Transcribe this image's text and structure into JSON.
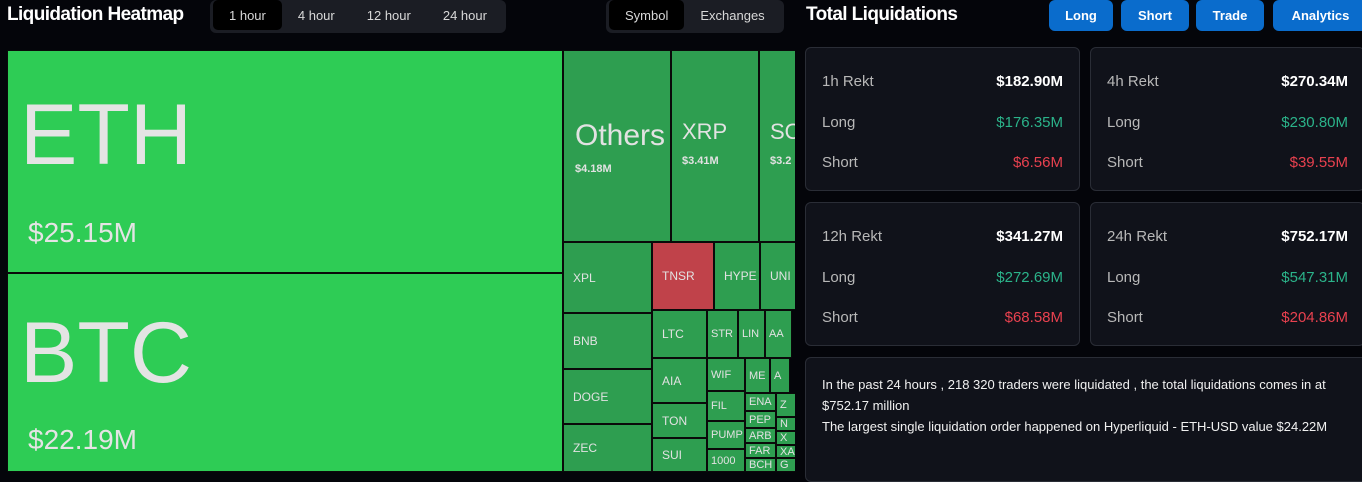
{
  "header": {
    "title": "Liquidation Heatmap",
    "time_tabs": [
      "1 hour",
      "4 hour",
      "12 hour",
      "24 hour"
    ],
    "active_time_tab": "1 hour",
    "view_tabs": [
      "Symbol",
      "Exchanges"
    ],
    "active_view_tab": "Symbol"
  },
  "right_header": {
    "title": "Total Liquidations",
    "buttons": [
      "Long",
      "Short",
      "Trade",
      "Analytics"
    ]
  },
  "colors": {
    "large_long": "#2ecc55",
    "long": "#2e9e50",
    "short": "#c0424a",
    "accent": "#0a6ccc",
    "long_text": "#2bb38a",
    "short_text": "#e8414f"
  },
  "treemap": [
    {
      "symbol": "ETH",
      "value": "$25.15M",
      "side": "large_long"
    },
    {
      "symbol": "BTC",
      "value": "$22.19M",
      "side": "large_long"
    },
    {
      "symbol": "Others",
      "value": "$4.18M",
      "side": "long"
    },
    {
      "symbol": "XRP",
      "value": "$3.41M",
      "side": "long"
    },
    {
      "symbol": "SOL",
      "value": "$3.2",
      "side": "long"
    },
    {
      "symbol": "XPL",
      "side": "long"
    },
    {
      "symbol": "BNB",
      "side": "long"
    },
    {
      "symbol": "DOGE",
      "side": "long"
    },
    {
      "symbol": "ZEC",
      "side": "long"
    },
    {
      "symbol": "TNSR",
      "side": "short"
    },
    {
      "symbol": "HYPE",
      "side": "long"
    },
    {
      "symbol": "UNI",
      "side": "long"
    },
    {
      "symbol": "LTC",
      "side": "long"
    },
    {
      "symbol": "AIA",
      "side": "long"
    },
    {
      "symbol": "TON",
      "side": "long"
    },
    {
      "symbol": "SUI",
      "side": "long"
    },
    {
      "symbol": "STR",
      "side": "long"
    },
    {
      "symbol": "LIN",
      "side": "long"
    },
    {
      "symbol": "AA",
      "side": "long"
    },
    {
      "symbol": "WIF",
      "side": "long"
    },
    {
      "symbol": "FIL",
      "side": "long"
    },
    {
      "symbol": "PUMP",
      "side": "long"
    },
    {
      "symbol": "1000",
      "side": "long"
    },
    {
      "symbol": "ME",
      "side": "long"
    },
    {
      "symbol": "A",
      "side": "long"
    },
    {
      "symbol": "ENA",
      "side": "long"
    },
    {
      "symbol": "PEP",
      "side": "long"
    },
    {
      "symbol": "ARB",
      "side": "long"
    },
    {
      "symbol": "FAR",
      "side": "long"
    },
    {
      "symbol": "BCH",
      "side": "long"
    },
    {
      "symbol": "Z",
      "side": "long"
    },
    {
      "symbol": "N",
      "side": "long"
    },
    {
      "symbol": "X",
      "side": "long"
    },
    {
      "symbol": "XA",
      "side": "long"
    },
    {
      "symbol": "G",
      "side": "long"
    }
  ],
  "cards": [
    {
      "label": "1h Rekt",
      "total": "$182.90M",
      "long_label": "Long",
      "long": "$176.35M",
      "short_label": "Short",
      "short": "$6.56M"
    },
    {
      "label": "4h Rekt",
      "total": "$270.34M",
      "long_label": "Long",
      "long": "$230.80M",
      "short_label": "Short",
      "short": "$39.55M"
    },
    {
      "label": "12h Rekt",
      "total": "$341.27M",
      "long_label": "Long",
      "long": "$272.69M",
      "short_label": "Short",
      "short": "$68.58M"
    },
    {
      "label": "24h Rekt",
      "total": "$752.17M",
      "long_label": "Long",
      "long": "$547.31M",
      "short_label": "Short",
      "short": "$204.86M"
    }
  ],
  "summary": {
    "line1": "In the past 24 hours , 218 320 traders were liquidated , the total liquidations comes in at $752.17 million",
    "line2": "The largest single liquidation order happened on Hyperliquid - ETH-USD value $24.22M"
  }
}
